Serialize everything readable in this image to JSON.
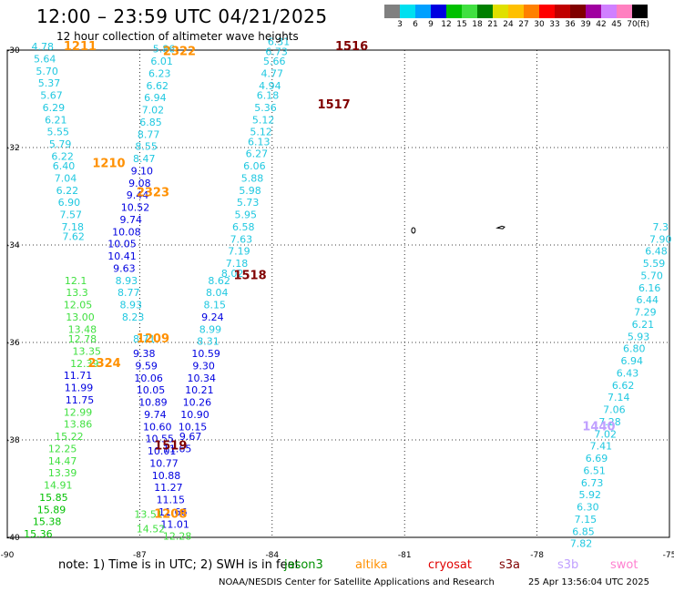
{
  "title": "12:00 – 23:59 UTC 04/21/2025",
  "subtitle": "12 hour collection of altimeter wave heights",
  "colorbar": {
    "unit_label": "(ft)",
    "labels": [
      "3",
      "6",
      "9",
      "12",
      "15",
      "18",
      "21",
      "24",
      "27",
      "30",
      "33",
      "36",
      "39",
      "42",
      "45",
      "70"
    ],
    "colors": [
      "#808080",
      "#00e0f0",
      "#00a0ff",
      "#0000e0",
      "#00c000",
      "#40e040",
      "#008000",
      "#e0e000",
      "#ffc000",
      "#ff8000",
      "#ff0000",
      "#c00000",
      "#800000",
      "#a000a0",
      "#d080ff",
      "#ff80c0",
      "#000000"
    ]
  },
  "axes": {
    "lat_labels": [
      "-30",
      "-32",
      "-34",
      "-36",
      "-38",
      "-40"
    ],
    "lon_labels": [
      "-90",
      "-87",
      "-84",
      "-81",
      "-78",
      "-75"
    ]
  },
  "legend": {
    "note": "note:  1) Time is in UTC;  2) SWH is in feet",
    "satellites": [
      {
        "name": "jason3",
        "color": "#009000"
      },
      {
        "name": "altika",
        "color": "#ff9000"
      },
      {
        "name": "cryosat",
        "color": "#e00000"
      },
      {
        "name": "s3a",
        "color": "#800000"
      },
      {
        "name": "s3b",
        "color": "#c0a0ff"
      },
      {
        "name": "swot",
        "color": "#ff80d0"
      }
    ]
  },
  "credit": "NOAA/NESDIS Center for Satellite Applications and Research",
  "timestamp": "25 Apr 13:56:04 UTC 2025",
  "track_labels": [
    {
      "text": "1211",
      "color": "#ff9000",
      "lat": -30.0,
      "lon": -88.35
    },
    {
      "text": "2322",
      "color": "#ff9000",
      "lat": -30.1,
      "lon": -86.1
    },
    {
      "text": "1516",
      "color": "#800000",
      "lat": -30.0,
      "lon": -82.2
    },
    {
      "text": "1517",
      "color": "#800000",
      "lat": -31.2,
      "lon": -82.6
    },
    {
      "text": "1210",
      "color": "#ff9000",
      "lat": -32.4,
      "lon": -87.7
    },
    {
      "text": "2323",
      "color": "#ff9000",
      "lat": -33.0,
      "lon": -86.7
    },
    {
      "text": "1518",
      "color": "#800000",
      "lat": -34.7,
      "lon": -84.5
    },
    {
      "text": "1209",
      "color": "#ff9000",
      "lat": -36.0,
      "lon": -86.7
    },
    {
      "text": "2324",
      "color": "#ff9000",
      "lat": -36.5,
      "lon": -87.8
    },
    {
      "text": "1519",
      "color": "#800000",
      "lat": -38.2,
      "lon": -86.3
    },
    {
      "text": "1440",
      "color": "#c0a0ff",
      "lat": -37.8,
      "lon": -76.6
    },
    {
      "text": "1208",
      "color": "#ff9000",
      "lat": -39.6,
      "lon": -86.3
    }
  ],
  "observations": [
    {
      "v": "4.78",
      "c": "#20c8e0",
      "lat": -30.0,
      "lon": -89.2
    },
    {
      "v": "5.64",
      "c": "#20c8e0",
      "lat": -30.25,
      "lon": -89.15
    },
    {
      "v": "5.70",
      "c": "#20c8e0",
      "lat": -30.5,
      "lon": -89.1
    },
    {
      "v": "5.37",
      "c": "#20c8e0",
      "lat": -30.75,
      "lon": -89.05
    },
    {
      "v": "5.67",
      "c": "#20c8e0",
      "lat": -31.0,
      "lon": -89.0
    },
    {
      "v": "6.29",
      "c": "#20c8e0",
      "lat": -31.25,
      "lon": -88.95
    },
    {
      "v": "6.21",
      "c": "#20c8e0",
      "lat": -31.5,
      "lon": -88.9
    },
    {
      "v": "5.55",
      "c": "#20c8e0",
      "lat": -31.75,
      "lon": -88.85
    },
    {
      "v": "5.79",
      "c": "#20c8e0",
      "lat": -32.0,
      "lon": -88.8
    },
    {
      "v": "6.22",
      "c": "#20c8e0",
      "lat": -32.25,
      "lon": -88.75
    },
    {
      "v": "6.40",
      "c": "#20c8e0",
      "lat": -32.45,
      "lon": -88.72
    },
    {
      "v": "7.04",
      "c": "#20c8e0",
      "lat": -32.7,
      "lon": -88.68
    },
    {
      "v": "6.22",
      "c": "#20c8e0",
      "lat": -32.95,
      "lon": -88.64
    },
    {
      "v": "6.90",
      "c": "#20c8e0",
      "lat": -33.2,
      "lon": -88.6
    },
    {
      "v": "7.57",
      "c": "#20c8e0",
      "lat": -33.45,
      "lon": -88.56
    },
    {
      "v": "7.18",
      "c": "#20c8e0",
      "lat": -33.7,
      "lon": -88.52
    },
    {
      "v": "7.62",
      "c": "#20c8e0",
      "lat": -33.9,
      "lon": -88.5
    },
    {
      "v": "12.1",
      "c": "#40e040",
      "lat": -34.8,
      "lon": -88.45
    },
    {
      "v": "13.3",
      "c": "#40e040",
      "lat": -35.05,
      "lon": -88.42
    },
    {
      "v": "12.05",
      "c": "#40e040",
      "lat": -35.3,
      "lon": -88.4
    },
    {
      "v": "13.00",
      "c": "#40e040",
      "lat": -35.55,
      "lon": -88.35
    },
    {
      "v": "13.48",
      "c": "#40e040",
      "lat": -35.8,
      "lon": -88.3
    },
    {
      "v": "12.78",
      "c": "#40e040",
      "lat": -36.0,
      "lon": -88.3
    },
    {
      "v": "13.35",
      "c": "#40e040",
      "lat": -36.25,
      "lon": -88.2
    },
    {
      "v": "12.39",
      "c": "#40e040",
      "lat": -36.5,
      "lon": -88.25
    },
    {
      "v": "11.71",
      "c": "#0000e0",
      "lat": -36.75,
      "lon": -88.4
    },
    {
      "v": "11.99",
      "c": "#0000e0",
      "lat": -37.0,
      "lon": -88.38
    },
    {
      "v": "11.75",
      "c": "#0000e0",
      "lat": -37.25,
      "lon": -88.36
    },
    {
      "v": "12.99",
      "c": "#40e040",
      "lat": -37.5,
      "lon": -88.4
    },
    {
      "v": "13.86",
      "c": "#40e040",
      "lat": -37.75,
      "lon": -88.4
    },
    {
      "v": "15.22",
      "c": "#40e040",
      "lat": -38.0,
      "lon": -88.6
    },
    {
      "v": "12.25",
      "c": "#40e040",
      "lat": -38.25,
      "lon": -88.75
    },
    {
      "v": "14.47",
      "c": "#40e040",
      "lat": -38.5,
      "lon": -88.75
    },
    {
      "v": "13.39",
      "c": "#40e040",
      "lat": -38.75,
      "lon": -88.75
    },
    {
      "v": "14.91",
      "c": "#40e040",
      "lat": -39.0,
      "lon": -88.85
    },
    {
      "v": "15.85",
      "c": "#00c000",
      "lat": -39.25,
      "lon": -88.95
    },
    {
      "v": "15.89",
      "c": "#00c000",
      "lat": -39.5,
      "lon": -89.0
    },
    {
      "v": "15.38",
      "c": "#00c000",
      "lat": -39.75,
      "lon": -89.1
    },
    {
      "v": "15.36",
      "c": "#00c000",
      "lat": -40.0,
      "lon": -89.3
    },
    {
      "v": "5.86",
      "c": "#20c8e0",
      "lat": -30.05,
      "lon": -86.45
    },
    {
      "v": "6.01",
      "c": "#20c8e0",
      "lat": -30.3,
      "lon": -86.5
    },
    {
      "v": "6.23",
      "c": "#20c8e0",
      "lat": -30.55,
      "lon": -86.55
    },
    {
      "v": "6.62",
      "c": "#20c8e0",
      "lat": -30.8,
      "lon": -86.6
    },
    {
      "v": "6.94",
      "c": "#20c8e0",
      "lat": -31.05,
      "lon": -86.65
    },
    {
      "v": "7.02",
      "c": "#20c8e0",
      "lat": -31.3,
      "lon": -86.7
    },
    {
      "v": "6.85",
      "c": "#20c8e0",
      "lat": -31.55,
      "lon": -86.75
    },
    {
      "v": "8.77",
      "c": "#20c8e0",
      "lat": -31.8,
      "lon": -86.8
    },
    {
      "v": "8.55",
      "c": "#20c8e0",
      "lat": -32.05,
      "lon": -86.85
    },
    {
      "v": "8.47",
      "c": "#20c8e0",
      "lat": -32.3,
      "lon": -86.9
    },
    {
      "v": "9.10",
      "c": "#0000e0",
      "lat": -32.55,
      "lon": -86.95
    },
    {
      "v": "9.08",
      "c": "#0000e0",
      "lat": -32.8,
      "lon": -87.0
    },
    {
      "v": "9.44",
      "c": "#0000e0",
      "lat": -33.05,
      "lon": -87.05
    },
    {
      "v": "10.52",
      "c": "#0000e0",
      "lat": -33.3,
      "lon": -87.1
    },
    {
      "v": "9.74",
      "c": "#0000e0",
      "lat": -33.55,
      "lon": -87.2
    },
    {
      "v": "10.08",
      "c": "#0000e0",
      "lat": -33.8,
      "lon": -87.3
    },
    {
      "v": "10.05",
      "c": "#0000e0",
      "lat": -34.05,
      "lon": -87.4
    },
    {
      "v": "10.41",
      "c": "#0000e0",
      "lat": -34.3,
      "lon": -87.4
    },
    {
      "v": "9.63",
      "c": "#0000e0",
      "lat": -34.55,
      "lon": -87.35
    },
    {
      "v": "8.93",
      "c": "#20c8e0",
      "lat": -34.8,
      "lon": -87.3
    },
    {
      "v": "8.77",
      "c": "#20c8e0",
      "lat": -35.05,
      "lon": -87.25
    },
    {
      "v": "8.93",
      "c": "#20c8e0",
      "lat": -35.3,
      "lon": -87.2
    },
    {
      "v": "8.23",
      "c": "#20c8e0",
      "lat": -35.55,
      "lon": -87.15
    },
    {
      "v": "8.71",
      "c": "#20c8e0",
      "lat": -36.0,
      "lon": -86.9
    },
    {
      "v": "9.38",
      "c": "#0000e0",
      "lat": -36.3,
      "lon": -86.9
    },
    {
      "v": "9.59",
      "c": "#0000e0",
      "lat": -36.55,
      "lon": -86.85
    },
    {
      "v": "10.06",
      "c": "#0000e0",
      "lat": -36.8,
      "lon": -86.8
    },
    {
      "v": "10.05",
      "c": "#0000e0",
      "lat": -37.05,
      "lon": -86.75
    },
    {
      "v": "10.89",
      "c": "#0000e0",
      "lat": -37.3,
      "lon": -86.7
    },
    {
      "v": "9.74",
      "c": "#0000e0",
      "lat": -37.55,
      "lon": -86.65
    },
    {
      "v": "10.60",
      "c": "#0000e0",
      "lat": -37.8,
      "lon": -86.6
    },
    {
      "v": "10.55",
      "c": "#0000e0",
      "lat": -38.05,
      "lon": -86.55
    },
    {
      "v": "10.01",
      "c": "#0000e0",
      "lat": -38.3,
      "lon": -86.5
    },
    {
      "v": "10.77",
      "c": "#0000e0",
      "lat": -38.55,
      "lon": -86.45
    },
    {
      "v": "10.88",
      "c": "#0000e0",
      "lat": -38.8,
      "lon": -86.4
    },
    {
      "v": "11.27",
      "c": "#0000e0",
      "lat": -39.05,
      "lon": -86.35
    },
    {
      "v": "11.15",
      "c": "#0000e0",
      "lat": -39.3,
      "lon": -86.3
    },
    {
      "v": "11.66",
      "c": "#0000e0",
      "lat": -39.55,
      "lon": -86.25
    },
    {
      "v": "11.01",
      "c": "#0000e0",
      "lat": -39.8,
      "lon": -86.2
    },
    {
      "v": "12.28",
      "c": "#40e040",
      "lat": -40.05,
      "lon": -86.15
    },
    {
      "v": "13.51",
      "c": "#40e040",
      "lat": -39.6,
      "lon": -86.8
    },
    {
      "v": "14.52",
      "c": "#40e040",
      "lat": -39.9,
      "lon": -86.75
    },
    {
      "v": "8.99",
      "c": "#20c8e0",
      "lat": -35.8,
      "lon": -85.4
    },
    {
      "v": "8.31",
      "c": "#20c8e0",
      "lat": -36.05,
      "lon": -85.45
    },
    {
      "v": "10.59",
      "c": "#0000e0",
      "lat": -36.3,
      "lon": -85.5
    },
    {
      "v": "9.30",
      "c": "#0000e0",
      "lat": -36.55,
      "lon": -85.55
    },
    {
      "v": "10.34",
      "c": "#0000e0",
      "lat": -36.8,
      "lon": -85.6
    },
    {
      "v": "10.21",
      "c": "#0000e0",
      "lat": -37.05,
      "lon": -85.65
    },
    {
      "v": "10.26",
      "c": "#0000e0",
      "lat": -37.3,
      "lon": -85.7
    },
    {
      "v": "10.90",
      "c": "#0000e0",
      "lat": -37.55,
      "lon": -85.75
    },
    {
      "v": "10.15",
      "c": "#0000e0",
      "lat": -37.8,
      "lon": -85.8
    },
    {
      "v": "9.67",
      "c": "#0000e0",
      "lat": -38.0,
      "lon": -85.85
    },
    {
      "v": "11.65",
      "c": "#0000e0",
      "lat": -38.25,
      "lon": -86.15
    },
    {
      "v": "9.24",
      "c": "#0000e0",
      "lat": -35.55,
      "lon": -85.35
    },
    {
      "v": "8.15",
      "c": "#20c8e0",
      "lat": -35.3,
      "lon": -85.3
    },
    {
      "v": "8.04",
      "c": "#20c8e0",
      "lat": -35.05,
      "lon": -85.25
    },
    {
      "v": "8.62",
      "c": "#20c8e0",
      "lat": -34.8,
      "lon": -85.2
    },
    {
      "v": "8.02",
      "c": "#20c8e0",
      "lat": -34.65,
      "lon": -84.9
    },
    {
      "v": "7.18",
      "c": "#20c8e0",
      "lat": -34.45,
      "lon": -84.8
    },
    {
      "v": "7.19",
      "c": "#20c8e0",
      "lat": -34.2,
      "lon": -84.75
    },
    {
      "v": "7.63",
      "c": "#20c8e0",
      "lat": -33.95,
      "lon": -84.7
    },
    {
      "v": "6.58",
      "c": "#20c8e0",
      "lat": -33.7,
      "lon": -84.65
    },
    {
      "v": "5.95",
      "c": "#20c8e0",
      "lat": -33.45,
      "lon": -84.6
    },
    {
      "v": "5.73",
      "c": "#20c8e0",
      "lat": -33.2,
      "lon": -84.55
    },
    {
      "v": "5.98",
      "c": "#20c8e0",
      "lat": -32.95,
      "lon": -84.5
    },
    {
      "v": "5.88",
      "c": "#20c8e0",
      "lat": -32.7,
      "lon": -84.45
    },
    {
      "v": "6.06",
      "c": "#20c8e0",
      "lat": -32.45,
      "lon": -84.4
    },
    {
      "v": "6.27",
      "c": "#20c8e0",
      "lat": -32.2,
      "lon": -84.35
    },
    {
      "v": "6.13",
      "c": "#20c8e0",
      "lat": -31.95,
      "lon": -84.3
    },
    {
      "v": "5.12",
      "c": "#20c8e0",
      "lat": -31.75,
      "lon": -84.25
    },
    {
      "v": "5.12",
      "c": "#20c8e0",
      "lat": -31.5,
      "lon": -84.2
    },
    {
      "v": "5.36",
      "c": "#20c8e0",
      "lat": -31.25,
      "lon": -84.15
    },
    {
      "v": "6.18",
      "c": "#20c8e0",
      "lat": -31.0,
      "lon": -84.1
    },
    {
      "v": "4.94",
      "c": "#20c8e0",
      "lat": -30.8,
      "lon": -84.05
    },
    {
      "v": "4.77",
      "c": "#20c8e0",
      "lat": -30.55,
      "lon": -84.0
    },
    {
      "v": "5.66",
      "c": "#20c8e0",
      "lat": -30.3,
      "lon": -83.95
    },
    {
      "v": "6.73",
      "c": "#20c8e0",
      "lat": -30.1,
      "lon": -83.9
    },
    {
      "v": "6.31",
      "c": "#20c8e0",
      "lat": -29.9,
      "lon": -83.85
    },
    {
      "v": "6.48",
      "c": "#20c8e0",
      "lat": -34.2,
      "lon": -75.3
    },
    {
      "v": "5.59",
      "c": "#20c8e0",
      "lat": -34.45,
      "lon": -75.35
    },
    {
      "v": "5.70",
      "c": "#20c8e0",
      "lat": -34.7,
      "lon": -75.4
    },
    {
      "v": "6.16",
      "c": "#20c8e0",
      "lat": -34.95,
      "lon": -75.45
    },
    {
      "v": "6.44",
      "c": "#20c8e0",
      "lat": -35.2,
      "lon": -75.5
    },
    {
      "v": "7.29",
      "c": "#20c8e0",
      "lat": -35.45,
      "lon": -75.55
    },
    {
      "v": "6.21",
      "c": "#20c8e0",
      "lat": -35.7,
      "lon": -75.6
    },
    {
      "v": "5.93",
      "c": "#20c8e0",
      "lat": -35.95,
      "lon": -75.7
    },
    {
      "v": "6.80",
      "c": "#20c8e0",
      "lat": -36.2,
      "lon": -75.8
    },
    {
      "v": "6.94",
      "c": "#20c8e0",
      "lat": -36.45,
      "lon": -75.85
    },
    {
      "v": "6.43",
      "c": "#20c8e0",
      "lat": -36.7,
      "lon": -75.95
    },
    {
      "v": "6.62",
      "c": "#20c8e0",
      "lat": -36.95,
      "lon": -76.05
    },
    {
      "v": "7.14",
      "c": "#20c8e0",
      "lat": -37.2,
      "lon": -76.15
    },
    {
      "v": "7.06",
      "c": "#20c8e0",
      "lat": -37.45,
      "lon": -76.25
    },
    {
      "v": "7.28",
      "c": "#20c8e0",
      "lat": -37.7,
      "lon": -76.35
    },
    {
      "v": "7.02",
      "c": "#20c8e0",
      "lat": -37.95,
      "lon": -76.45
    },
    {
      "v": "7.41",
      "c": "#20c8e0",
      "lat": -38.2,
      "lon": -76.55
    },
    {
      "v": "6.69",
      "c": "#20c8e0",
      "lat": -38.45,
      "lon": -76.65
    },
    {
      "v": "6.51",
      "c": "#20c8e0",
      "lat": -38.7,
      "lon": -76.7
    },
    {
      "v": "6.73",
      "c": "#20c8e0",
      "lat": -38.95,
      "lon": -76.75
    },
    {
      "v": "5.92",
      "c": "#20c8e0",
      "lat": -39.2,
      "lon": -76.8
    },
    {
      "v": "6.30",
      "c": "#20c8e0",
      "lat": -39.45,
      "lon": -76.85
    },
    {
      "v": "7.15",
      "c": "#20c8e0",
      "lat": -39.7,
      "lon": -76.9
    },
    {
      "v": "6.85",
      "c": "#20c8e0",
      "lat": -39.95,
      "lon": -76.95
    },
    {
      "v": "7.82",
      "c": "#20c8e0",
      "lat": -40.2,
      "lon": -77.0
    },
    {
      "v": "7.90",
      "c": "#20c8e0",
      "lat": -33.95,
      "lon": -75.2
    },
    {
      "v": "7.3",
      "c": "#20c8e0",
      "lat": -33.7,
      "lon": -75.2
    }
  ]
}
